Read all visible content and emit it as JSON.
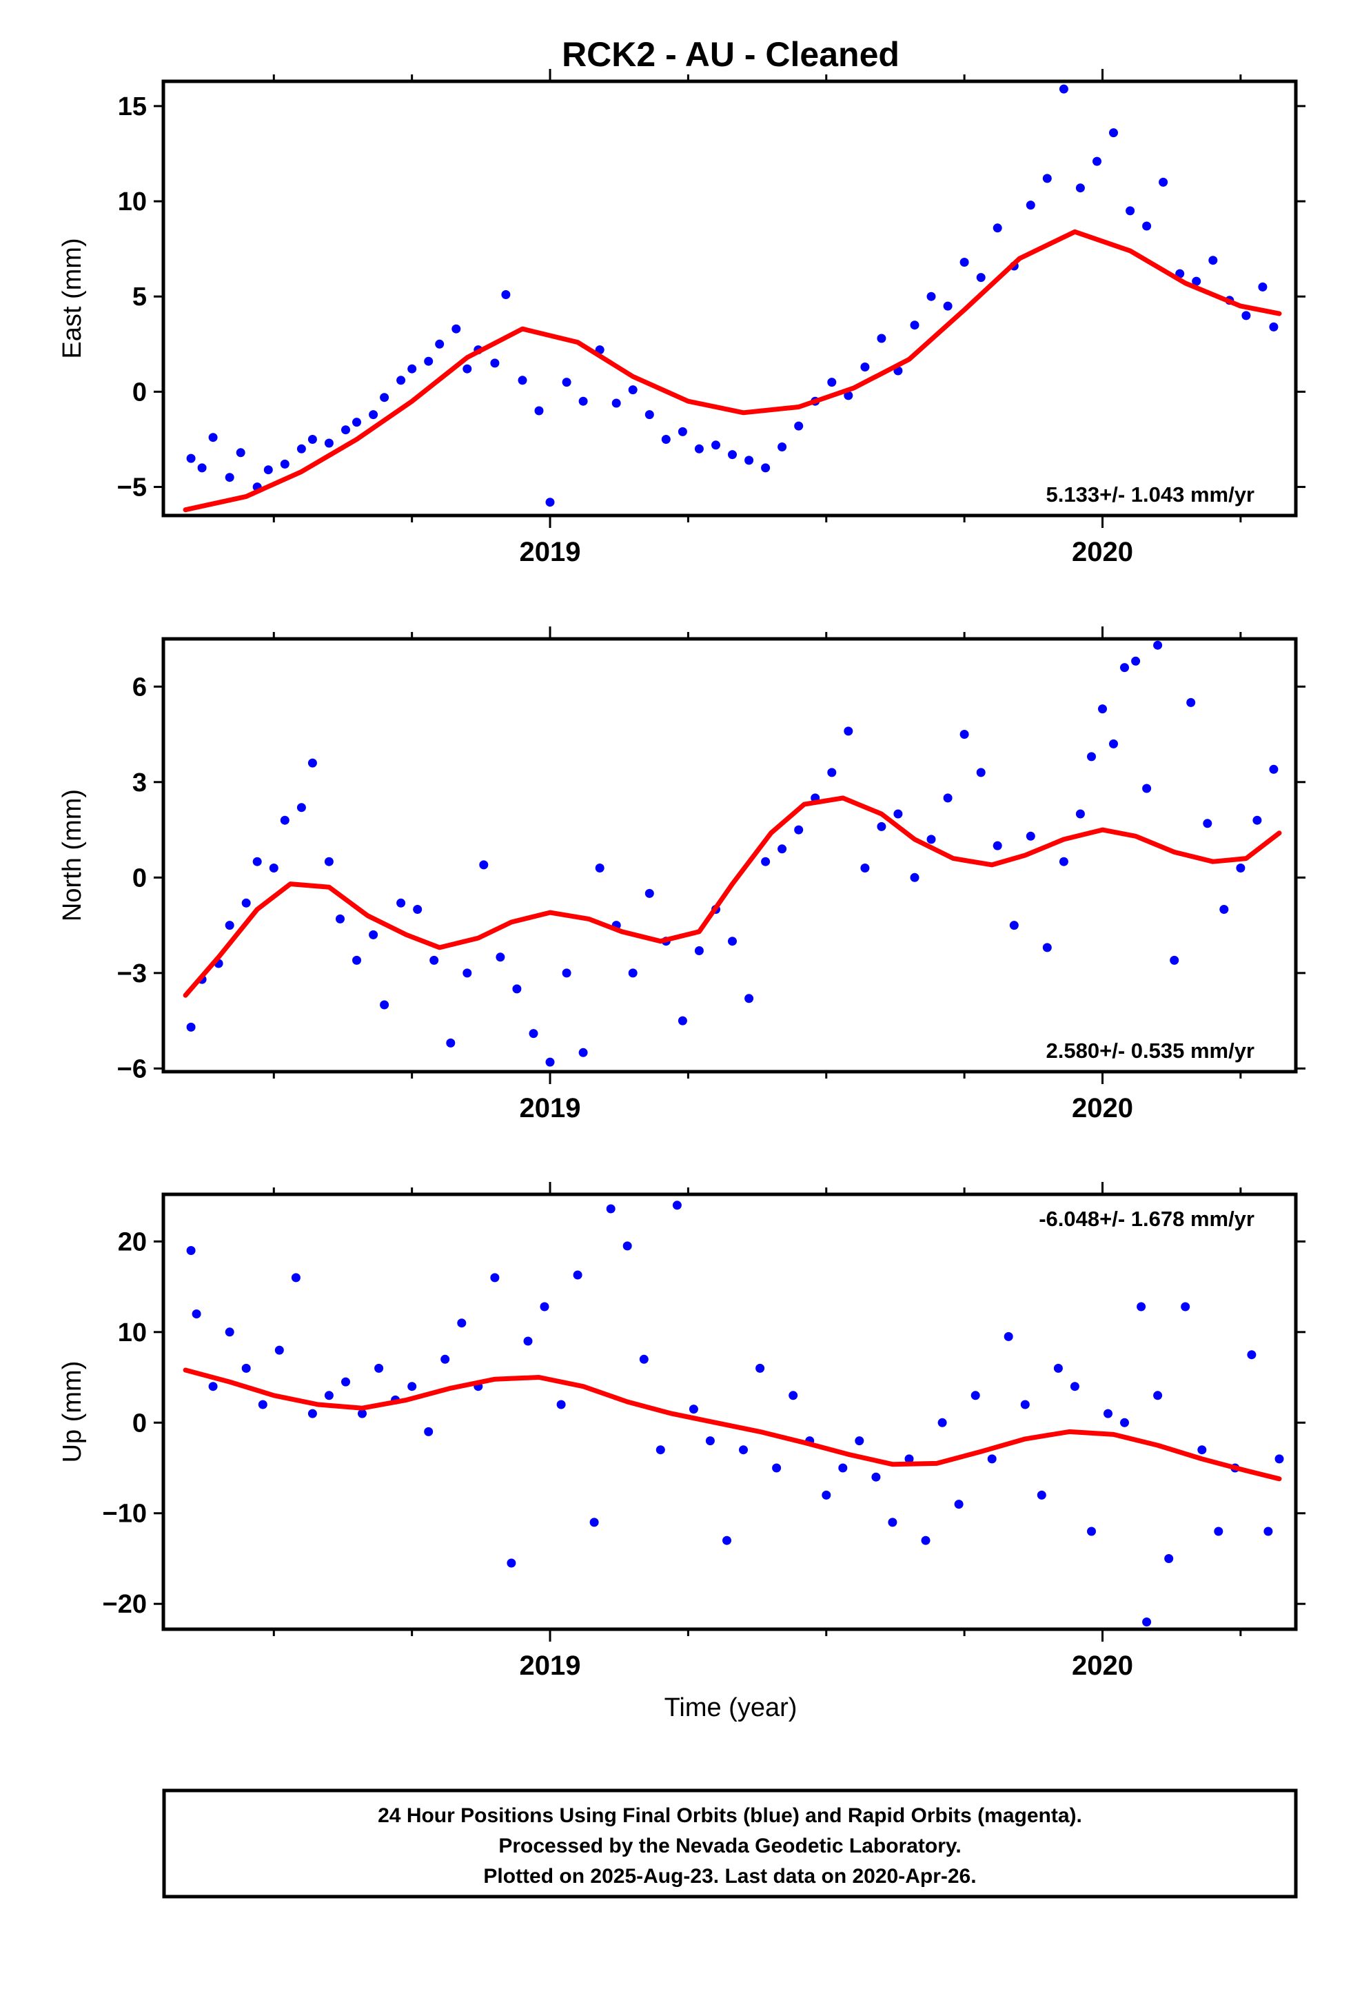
{
  "title": "RCK2  - AU - Cleaned",
  "xlabel": "Time (year)",
  "footer_lines": [
    "24 Hour Positions Using Final Orbits (blue) and Rapid Orbits (magenta).",
    "Processed by the Nevada Geodetic Laboratory.",
    "Plotted on 2025-Aug-23. Last data on 2020-Apr-26."
  ],
  "colors": {
    "points": "#0000ff",
    "fit": "#ff0000"
  },
  "chart_data": [
    {
      "type": "scatter",
      "ylabel": "East (mm)",
      "xlim": [
        2018.3,
        2020.35
      ],
      "ylim": [
        -6.5,
        16.3
      ],
      "x_ticks": [
        2019,
        2020
      ],
      "x_tick_labels": [
        "2019",
        "2020"
      ],
      "x_minor_ticks": [
        2018.5,
        2018.75,
        2019.25,
        2019.5,
        2019.75,
        2020.25
      ],
      "y_ticks": [
        -5,
        0,
        5,
        10,
        15
      ],
      "y_tick_labels": [
        "−5",
        "0",
        "5",
        "10",
        "15"
      ],
      "rate_label": "5.133+/- 1.043 mm/yr",
      "rate_position": "bottom-right",
      "fit": {
        "x": [
          2018.34,
          2018.45,
          2018.55,
          2018.65,
          2018.75,
          2018.85,
          2018.95,
          2019.05,
          2019.15,
          2019.25,
          2019.35,
          2019.45,
          2019.55,
          2019.65,
          2019.75,
          2019.85,
          2019.95,
          2020.05,
          2020.15,
          2020.25,
          2020.32
        ],
        "y": [
          -6.2,
          -5.5,
          -4.2,
          -2.5,
          -0.5,
          1.8,
          3.3,
          2.6,
          0.8,
          -0.5,
          -1.1,
          -0.8,
          0.2,
          1.7,
          4.3,
          7.0,
          8.4,
          7.4,
          5.7,
          4.5,
          4.1
        ]
      },
      "points": {
        "x": [
          2018.35,
          2018.37,
          2018.39,
          2018.42,
          2018.44,
          2018.47,
          2018.49,
          2018.52,
          2018.55,
          2018.57,
          2018.6,
          2018.63,
          2018.65,
          2018.68,
          2018.7,
          2018.73,
          2018.75,
          2018.78,
          2018.8,
          2018.83,
          2018.85,
          2018.87,
          2018.9,
          2018.92,
          2018.95,
          2018.98,
          2019.0,
          2019.03,
          2019.06,
          2019.09,
          2019.12,
          2019.15,
          2019.18,
          2019.21,
          2019.24,
          2019.27,
          2019.3,
          2019.33,
          2019.36,
          2019.39,
          2019.42,
          2019.45,
          2019.48,
          2019.51,
          2019.54,
          2019.57,
          2019.6,
          2019.63,
          2019.66,
          2019.69,
          2019.72,
          2019.75,
          2019.78,
          2019.81,
          2019.84,
          2019.87,
          2019.9,
          2019.93,
          2019.96,
          2019.99,
          2020.02,
          2020.05,
          2020.08,
          2020.11,
          2020.14,
          2020.17,
          2020.2,
          2020.23,
          2020.26,
          2020.29,
          2020.31
        ],
        "y": [
          -3.5,
          -4.0,
          -2.4,
          -4.5,
          -3.2,
          -5.0,
          -4.1,
          -3.8,
          -3.0,
          -2.5,
          -2.7,
          -2.0,
          -1.6,
          -1.2,
          -0.3,
          0.6,
          1.2,
          1.6,
          2.5,
          3.3,
          1.2,
          2.2,
          1.5,
          5.1,
          0.6,
          -1.0,
          -5.8,
          0.5,
          -0.5,
          2.2,
          -0.6,
          0.1,
          -1.2,
          -2.5,
          -2.1,
          -3.0,
          -2.8,
          -3.3,
          -3.6,
          -4.0,
          -2.9,
          -1.8,
          -0.5,
          0.5,
          -0.2,
          1.3,
          2.8,
          1.1,
          3.5,
          5.0,
          4.5,
          6.8,
          6.0,
          8.6,
          6.6,
          9.8,
          11.2,
          15.9,
          10.7,
          12.1,
          13.6,
          9.5,
          8.7,
          11.0,
          6.2,
          5.8,
          6.9,
          4.8,
          4.0,
          5.5,
          3.4
        ]
      }
    },
    {
      "type": "scatter",
      "ylabel": "North (mm)",
      "xlim": [
        2018.3,
        2020.35
      ],
      "ylim": [
        -6.1,
        7.5
      ],
      "x_ticks": [
        2019,
        2020
      ],
      "x_tick_labels": [
        "2019",
        "2020"
      ],
      "x_minor_ticks": [
        2018.5,
        2018.75,
        2019.25,
        2019.5,
        2019.75,
        2020.25
      ],
      "y_ticks": [
        -6,
        -3,
        0,
        3,
        6
      ],
      "y_tick_labels": [
        "−6",
        "−3",
        "0",
        "3",
        "6"
      ],
      "rate_label": "2.580+/- 0.535 mm/yr",
      "rate_position": "bottom-right",
      "fit": {
        "x": [
          2018.34,
          2018.4,
          2018.47,
          2018.53,
          2018.6,
          2018.67,
          2018.74,
          2018.8,
          2018.87,
          2018.93,
          2019.0,
          2019.07,
          2019.13,
          2019.2,
          2019.27,
          2019.33,
          2019.4,
          2019.46,
          2019.53,
          2019.6,
          2019.66,
          2019.73,
          2019.8,
          2019.86,
          2019.93,
          2020.0,
          2020.06,
          2020.13,
          2020.2,
          2020.26,
          2020.32
        ],
        "y": [
          -3.7,
          -2.5,
          -1.0,
          -0.2,
          -0.3,
          -1.2,
          -1.8,
          -2.2,
          -1.9,
          -1.4,
          -1.1,
          -1.3,
          -1.7,
          -2.0,
          -1.7,
          -0.2,
          1.4,
          2.3,
          2.5,
          2.0,
          1.2,
          0.6,
          0.4,
          0.7,
          1.2,
          1.5,
          1.3,
          0.8,
          0.5,
          0.6,
          1.4
        ]
      },
      "points": {
        "x": [
          2018.35,
          2018.37,
          2018.4,
          2018.42,
          2018.45,
          2018.47,
          2018.5,
          2018.52,
          2018.55,
          2018.57,
          2018.6,
          2018.62,
          2018.65,
          2018.68,
          2018.7,
          2018.73,
          2018.76,
          2018.79,
          2018.82,
          2018.85,
          2018.88,
          2018.91,
          2018.94,
          2018.97,
          2019.0,
          2019.03,
          2019.06,
          2019.09,
          2019.12,
          2019.15,
          2019.18,
          2019.21,
          2019.24,
          2019.27,
          2019.3,
          2019.33,
          2019.36,
          2019.39,
          2019.42,
          2019.45,
          2019.48,
          2019.51,
          2019.54,
          2019.57,
          2019.6,
          2019.63,
          2019.66,
          2019.69,
          2019.72,
          2019.75,
          2019.78,
          2019.81,
          2019.84,
          2019.87,
          2019.9,
          2019.93,
          2019.96,
          2019.98,
          2020.0,
          2020.02,
          2020.04,
          2020.06,
          2020.08,
          2020.1,
          2020.13,
          2020.16,
          2020.19,
          2020.22,
          2020.25,
          2020.28,
          2020.31
        ],
        "y": [
          -4.7,
          -3.2,
          -2.7,
          -1.5,
          -0.8,
          0.5,
          0.3,
          1.8,
          2.2,
          3.6,
          0.5,
          -1.3,
          -2.6,
          -1.8,
          -4.0,
          -0.8,
          -1.0,
          -2.6,
          -5.2,
          -3.0,
          0.4,
          -2.5,
          -3.5,
          -4.9,
          -5.8,
          -3.0,
          -5.5,
          0.3,
          -1.5,
          -3.0,
          -0.5,
          -2.0,
          -4.5,
          -2.3,
          -1.0,
          -2.0,
          -3.8,
          0.5,
          0.9,
          1.5,
          2.5,
          3.3,
          4.6,
          0.3,
          1.6,
          2.0,
          0.0,
          1.2,
          2.5,
          4.5,
          3.3,
          1.0,
          -1.5,
          1.3,
          -2.2,
          0.5,
          2.0,
          3.8,
          5.3,
          4.2,
          6.6,
          6.8,
          2.8,
          7.3,
          -2.6,
          5.5,
          1.7,
          -1.0,
          0.3,
          1.8,
          3.4
        ]
      }
    },
    {
      "type": "scatter",
      "ylabel": "Up (mm)",
      "xlim": [
        2018.3,
        2020.35
      ],
      "ylim": [
        -22.8,
        25.2
      ],
      "x_ticks": [
        2019,
        2020
      ],
      "x_tick_labels": [
        "2019",
        "2020"
      ],
      "x_minor_ticks": [
        2018.5,
        2018.75,
        2019.25,
        2019.5,
        2019.75,
        2020.25
      ],
      "y_ticks": [
        -20,
        -10,
        0,
        10,
        20
      ],
      "y_tick_labels": [
        "−20",
        "−10",
        "0",
        "10",
        "20"
      ],
      "rate_label": "-6.048+/- 1.678 mm/yr",
      "rate_position": "top-right",
      "fit": {
        "x": [
          2018.34,
          2018.42,
          2018.5,
          2018.58,
          2018.66,
          2018.74,
          2018.82,
          2018.9,
          2018.98,
          2019.06,
          2019.14,
          2019.22,
          2019.3,
          2019.38,
          2019.46,
          2019.54,
          2019.62,
          2019.7,
          2019.78,
          2019.86,
          2019.94,
          2020.02,
          2020.1,
          2020.18,
          2020.26,
          2020.32
        ],
        "y": [
          5.8,
          4.5,
          3.0,
          2.0,
          1.6,
          2.5,
          3.8,
          4.8,
          5.0,
          4.0,
          2.3,
          1.0,
          0.0,
          -1.0,
          -2.2,
          -3.5,
          -4.6,
          -4.5,
          -3.2,
          -1.8,
          -1.0,
          -1.3,
          -2.5,
          -4.0,
          -5.3,
          -6.2
        ]
      },
      "points": {
        "x": [
          2018.35,
          2018.36,
          2018.39,
          2018.42,
          2018.45,
          2018.48,
          2018.51,
          2018.54,
          2018.57,
          2018.6,
          2018.63,
          2018.66,
          2018.69,
          2018.72,
          2018.75,
          2018.78,
          2018.81,
          2018.84,
          2018.87,
          2018.9,
          2018.93,
          2018.96,
          2018.99,
          2019.02,
          2019.05,
          2019.08,
          2019.11,
          2019.14,
          2019.17,
          2019.2,
          2019.23,
          2019.26,
          2019.29,
          2019.32,
          2019.35,
          2019.38,
          2019.41,
          2019.44,
          2019.47,
          2019.5,
          2019.53,
          2019.56,
          2019.59,
          2019.62,
          2019.65,
          2019.68,
          2019.71,
          2019.74,
          2019.77,
          2019.8,
          2019.83,
          2019.86,
          2019.89,
          2019.92,
          2019.95,
          2019.98,
          2020.01,
          2020.04,
          2020.07,
          2020.08,
          2020.1,
          2020.12,
          2020.15,
          2020.18,
          2020.21,
          2020.24,
          2020.27,
          2020.3,
          2020.32
        ],
        "y": [
          19.0,
          12.0,
          4.0,
          10.0,
          6.0,
          2.0,
          8.0,
          16.0,
          1.0,
          3.0,
          4.5,
          1.0,
          6.0,
          2.5,
          4.0,
          -1.0,
          7.0,
          11.0,
          4.0,
          16.0,
          -15.5,
          9.0,
          12.8,
          2.0,
          16.3,
          -11.0,
          23.6,
          19.5,
          7.0,
          -3.0,
          24.0,
          1.5,
          -2.0,
          -13.0,
          -3.0,
          6.0,
          -5.0,
          3.0,
          -2.0,
          -8.0,
          -5.0,
          -2.0,
          -6.0,
          -11.0,
          -4.0,
          -13.0,
          0.0,
          -9.0,
          3.0,
          -4.0,
          9.5,
          2.0,
          -8.0,
          6.0,
          4.0,
          -12.0,
          1.0,
          0.0,
          12.8,
          -22.0,
          3.0,
          -15.0,
          12.8,
          -3.0,
          -12.0,
          -5.0,
          7.5,
          -12.0,
          -4.0
        ]
      }
    }
  ]
}
